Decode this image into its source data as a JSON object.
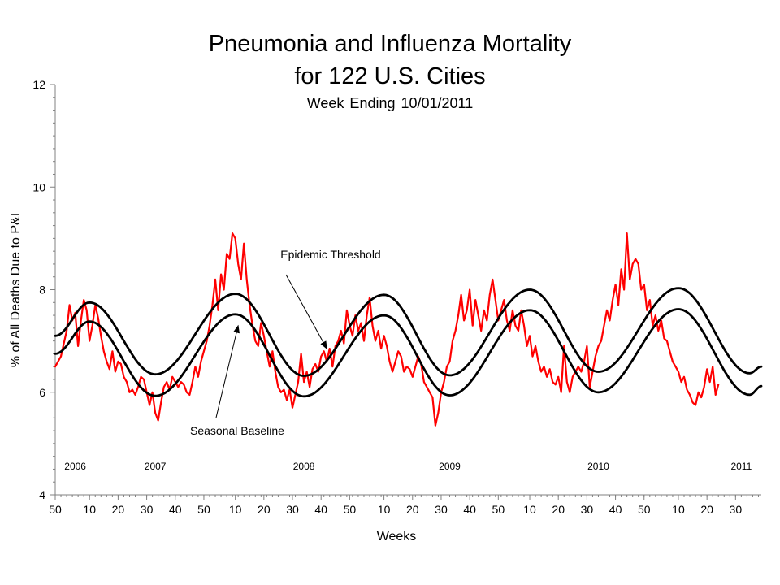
{
  "title": "Pneumonia and Influenza Mortality",
  "title_line2": "for 122 U.S. Cities",
  "subtitle": "Week Ending   10/01/2011",
  "chart_data": {
    "type": "line",
    "xlabel": "Weeks",
    "ylabel": "% of All Deaths Due to P&I",
    "ylim": [
      4,
      12
    ],
    "yticks": [
      4,
      6,
      8,
      10,
      12
    ],
    "x_index_range": [
      0,
      247
    ],
    "week_tick_labels": [
      {
        "i": 0,
        "label": "50"
      },
      {
        "i": 12,
        "label": "10"
      },
      {
        "i": 22,
        "label": "20"
      },
      {
        "i": 32,
        "label": "30"
      },
      {
        "i": 42,
        "label": "40"
      },
      {
        "i": 52,
        "label": "50"
      },
      {
        "i": 63,
        "label": "10"
      },
      {
        "i": 73,
        "label": "20"
      },
      {
        "i": 83,
        "label": "30"
      },
      {
        "i": 93,
        "label": "40"
      },
      {
        "i": 103,
        "label": "50"
      },
      {
        "i": 115,
        "label": "10"
      },
      {
        "i": 125,
        "label": "20"
      },
      {
        "i": 135,
        "label": "30"
      },
      {
        "i": 145,
        "label": "40"
      },
      {
        "i": 155,
        "label": "50"
      },
      {
        "i": 166,
        "label": "10"
      },
      {
        "i": 176,
        "label": "20"
      },
      {
        "i": 186,
        "label": "30"
      },
      {
        "i": 196,
        "label": "40"
      },
      {
        "i": 206,
        "label": "50"
      },
      {
        "i": 218,
        "label": "10"
      },
      {
        "i": 228,
        "label": "20"
      },
      {
        "i": 238,
        "label": "30"
      }
    ],
    "year_labels": [
      {
        "i": 7,
        "label": "2006"
      },
      {
        "i": 35,
        "label": "2007"
      },
      {
        "i": 87,
        "label": "2008"
      },
      {
        "i": 138,
        "label": "2009"
      },
      {
        "i": 190,
        "label": "2010"
      },
      {
        "i": 240,
        "label": "2011"
      }
    ],
    "series": [
      {
        "name": "Epidemic Threshold",
        "color": "#000000",
        "points": [
          [
            0,
            7.1
          ],
          [
            12,
            7.75
          ],
          [
            35,
            6.35
          ],
          [
            63,
            7.92
          ],
          [
            87,
            6.32
          ],
          [
            115,
            7.9
          ],
          [
            138,
            6.33
          ],
          [
            166,
            8.0
          ],
          [
            190,
            6.4
          ],
          [
            218,
            8.03
          ],
          [
            243,
            6.37
          ],
          [
            247,
            6.5
          ]
        ]
      },
      {
        "name": "Seasonal Baseline",
        "color": "#000000",
        "points": [
          [
            0,
            6.75
          ],
          [
            12,
            7.38
          ],
          [
            35,
            5.93
          ],
          [
            63,
            7.52
          ],
          [
            87,
            5.92
          ],
          [
            115,
            7.5
          ],
          [
            138,
            5.94
          ],
          [
            166,
            7.6
          ],
          [
            190,
            6.0
          ],
          [
            218,
            7.62
          ],
          [
            243,
            5.95
          ],
          [
            247,
            6.12
          ]
        ]
      },
      {
        "name": "",
        "color": "#ff0000",
        "points": [
          [
            0,
            6.5
          ],
          [
            2,
            6.7
          ],
          [
            4,
            7.2
          ],
          [
            5,
            7.7
          ],
          [
            6,
            7.4
          ],
          [
            7,
            7.55
          ],
          [
            8,
            6.9
          ],
          [
            9,
            7.4
          ],
          [
            10,
            7.8
          ],
          [
            11,
            7.6
          ],
          [
            12,
            7.0
          ],
          [
            13,
            7.3
          ],
          [
            14,
            7.7
          ],
          [
            15,
            7.45
          ],
          [
            16,
            7.1
          ],
          [
            17,
            6.8
          ],
          [
            18,
            6.6
          ],
          [
            19,
            6.45
          ],
          [
            20,
            6.8
          ],
          [
            21,
            6.4
          ],
          [
            22,
            6.6
          ],
          [
            23,
            6.55
          ],
          [
            24,
            6.3
          ],
          [
            25,
            6.2
          ],
          [
            26,
            6.0
          ],
          [
            27,
            6.05
          ],
          [
            28,
            5.95
          ],
          [
            29,
            6.1
          ],
          [
            30,
            6.3
          ],
          [
            31,
            6.25
          ],
          [
            32,
            6.0
          ],
          [
            33,
            5.75
          ],
          [
            34,
            6.0
          ],
          [
            35,
            5.6
          ],
          [
            36,
            5.45
          ],
          [
            37,
            5.8
          ],
          [
            38,
            6.1
          ],
          [
            39,
            6.2
          ],
          [
            40,
            6.05
          ],
          [
            41,
            6.3
          ],
          [
            42,
            6.2
          ],
          [
            43,
            6.1
          ],
          [
            44,
            6.2
          ],
          [
            45,
            6.15
          ],
          [
            46,
            6.0
          ],
          [
            47,
            5.95
          ],
          [
            48,
            6.2
          ],
          [
            49,
            6.5
          ],
          [
            50,
            6.3
          ],
          [
            51,
            6.6
          ],
          [
            52,
            6.8
          ],
          [
            53,
            7.0
          ],
          [
            54,
            7.3
          ],
          [
            55,
            7.7
          ],
          [
            56,
            8.2
          ],
          [
            57,
            7.6
          ],
          [
            58,
            8.3
          ],
          [
            59,
            8.0
          ],
          [
            60,
            8.7
          ],
          [
            61,
            8.6
          ],
          [
            62,
            9.1
          ],
          [
            63,
            9.0
          ],
          [
            64,
            8.5
          ],
          [
            65,
            8.2
          ],
          [
            66,
            8.9
          ],
          [
            67,
            8.2
          ],
          [
            68,
            7.7
          ],
          [
            69,
            7.3
          ],
          [
            70,
            7.0
          ],
          [
            71,
            6.9
          ],
          [
            72,
            7.35
          ],
          [
            73,
            7.1
          ],
          [
            74,
            6.8
          ],
          [
            75,
            6.5
          ],
          [
            76,
            6.8
          ],
          [
            77,
            6.4
          ],
          [
            78,
            6.1
          ],
          [
            79,
            6.0
          ],
          [
            80,
            6.05
          ],
          [
            81,
            5.85
          ],
          [
            82,
            6.05
          ],
          [
            83,
            5.7
          ],
          [
            84,
            5.95
          ],
          [
            85,
            6.2
          ],
          [
            86,
            6.75
          ],
          [
            87,
            6.2
          ],
          [
            88,
            6.4
          ],
          [
            89,
            6.1
          ],
          [
            90,
            6.45
          ],
          [
            91,
            6.55
          ],
          [
            92,
            6.4
          ],
          [
            93,
            6.7
          ],
          [
            94,
            6.8
          ],
          [
            95,
            6.6
          ],
          [
            96,
            6.85
          ],
          [
            97,
            6.5
          ],
          [
            98,
            6.9
          ],
          [
            99,
            7.0
          ],
          [
            100,
            7.2
          ],
          [
            101,
            6.95
          ],
          [
            102,
            7.6
          ],
          [
            103,
            7.3
          ],
          [
            104,
            7.1
          ],
          [
            105,
            7.5
          ],
          [
            106,
            7.2
          ],
          [
            107,
            7.35
          ],
          [
            108,
            7.0
          ],
          [
            109,
            7.5
          ],
          [
            110,
            7.85
          ],
          [
            111,
            7.3
          ],
          [
            112,
            7.0
          ],
          [
            113,
            7.2
          ],
          [
            114,
            6.85
          ],
          [
            115,
            7.1
          ],
          [
            116,
            6.9
          ],
          [
            117,
            6.6
          ],
          [
            118,
            6.4
          ],
          [
            119,
            6.6
          ],
          [
            120,
            6.8
          ],
          [
            121,
            6.7
          ],
          [
            122,
            6.4
          ],
          [
            123,
            6.5
          ],
          [
            124,
            6.45
          ],
          [
            125,
            6.3
          ],
          [
            126,
            6.5
          ],
          [
            127,
            6.7
          ],
          [
            128,
            6.55
          ],
          [
            129,
            6.2
          ],
          [
            130,
            6.1
          ],
          [
            131,
            6.0
          ],
          [
            132,
            5.9
          ],
          [
            133,
            5.35
          ],
          [
            134,
            5.6
          ],
          [
            135,
            6.0
          ],
          [
            136,
            6.2
          ],
          [
            137,
            6.5
          ],
          [
            138,
            6.6
          ],
          [
            139,
            7.0
          ],
          [
            140,
            7.2
          ],
          [
            141,
            7.5
          ],
          [
            142,
            7.9
          ],
          [
            143,
            7.4
          ],
          [
            144,
            7.6
          ],
          [
            145,
            8.0
          ],
          [
            146,
            7.3
          ],
          [
            147,
            7.8
          ],
          [
            148,
            7.5
          ],
          [
            149,
            7.2
          ],
          [
            150,
            7.6
          ],
          [
            151,
            7.4
          ],
          [
            152,
            7.9
          ],
          [
            153,
            8.2
          ],
          [
            154,
            7.8
          ],
          [
            155,
            7.4
          ],
          [
            156,
            7.6
          ],
          [
            157,
            7.8
          ],
          [
            158,
            7.4
          ],
          [
            159,
            7.2
          ],
          [
            160,
            7.6
          ],
          [
            161,
            7.3
          ],
          [
            162,
            7.2
          ],
          [
            163,
            7.6
          ],
          [
            164,
            7.3
          ],
          [
            165,
            6.9
          ],
          [
            166,
            7.1
          ],
          [
            167,
            6.7
          ],
          [
            168,
            6.9
          ],
          [
            169,
            6.6
          ],
          [
            170,
            6.4
          ],
          [
            171,
            6.5
          ],
          [
            172,
            6.3
          ],
          [
            173,
            6.45
          ],
          [
            174,
            6.2
          ],
          [
            175,
            6.15
          ],
          [
            176,
            6.3
          ],
          [
            177,
            6.0
          ],
          [
            178,
            6.9
          ],
          [
            179,
            6.2
          ],
          [
            180,
            6.0
          ],
          [
            181,
            6.3
          ],
          [
            182,
            6.4
          ],
          [
            183,
            6.5
          ],
          [
            184,
            6.4
          ],
          [
            185,
            6.6
          ],
          [
            186,
            6.9
          ],
          [
            187,
            6.1
          ],
          [
            188,
            6.4
          ],
          [
            189,
            6.7
          ],
          [
            190,
            6.9
          ],
          [
            191,
            7.0
          ],
          [
            192,
            7.3
          ],
          [
            193,
            7.6
          ],
          [
            194,
            7.4
          ],
          [
            195,
            7.8
          ],
          [
            196,
            8.1
          ],
          [
            197,
            7.7
          ],
          [
            198,
            8.4
          ],
          [
            199,
            8.0
          ],
          [
            200,
            9.1
          ],
          [
            201,
            8.2
          ],
          [
            202,
            8.5
          ],
          [
            203,
            8.6
          ],
          [
            204,
            8.5
          ],
          [
            205,
            8.0
          ],
          [
            206,
            8.1
          ],
          [
            207,
            7.6
          ],
          [
            208,
            7.8
          ],
          [
            209,
            7.3
          ],
          [
            210,
            7.5
          ],
          [
            211,
            7.2
          ],
          [
            212,
            7.4
          ],
          [
            213,
            7.05
          ],
          [
            214,
            7.0
          ],
          [
            215,
            6.8
          ],
          [
            216,
            6.6
          ],
          [
            217,
            6.5
          ],
          [
            218,
            6.4
          ],
          [
            219,
            6.2
          ],
          [
            220,
            6.3
          ],
          [
            221,
            6.05
          ],
          [
            222,
            5.95
          ],
          [
            223,
            5.8
          ],
          [
            224,
            5.75
          ],
          [
            225,
            6.0
          ],
          [
            226,
            5.9
          ],
          [
            227,
            6.1
          ],
          [
            228,
            6.45
          ],
          [
            229,
            6.2
          ],
          [
            230,
            6.5
          ],
          [
            231,
            5.95
          ],
          [
            232,
            6.15
          ]
        ]
      }
    ],
    "annotations": [
      {
        "label": "Epidemic Threshold",
        "target_series": "Epidemic Threshold"
      },
      {
        "label": "Seasonal Baseline",
        "target_series": "Seasonal Baseline"
      }
    ],
    "grid": false,
    "legend": "none"
  }
}
